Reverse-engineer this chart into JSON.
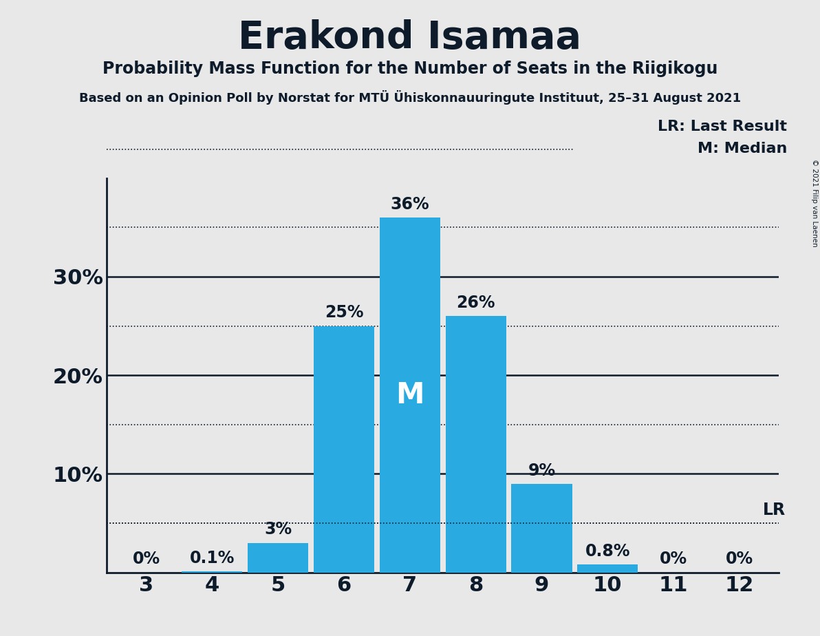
{
  "title": "Erakond Isamaa",
  "subtitle": "Probability Mass Function for the Number of Seats in the Riigikogu",
  "source_text": "Based on an Opinion Poll by Norstat for MTÜ Ühiskonnauuringute Instituut, 25–31 August 2021",
  "copyright_text": "© 2021 Filip van Laenen",
  "categories": [
    3,
    4,
    5,
    6,
    7,
    8,
    9,
    10,
    11,
    12
  ],
  "values": [
    0.0,
    0.1,
    3.0,
    25.0,
    36.0,
    26.0,
    9.0,
    0.8,
    0.0,
    0.0
  ],
  "bar_color": "#29ABE2",
  "median_seat": 7,
  "last_result_pct": 5.0,
  "background_color": "#E8E8E8",
  "title_color": "#0d1b2a",
  "text_color": "#0d1b2a",
  "ylim": [
    0,
    40
  ],
  "solid_grid_lines": [
    10,
    20,
    30
  ],
  "dotted_grid_lines": [
    5,
    15,
    25,
    35
  ],
  "lr_line_pct": 5.0,
  "value_labels": [
    "0%",
    "0.1%",
    "3%",
    "25%",
    "36%",
    "26%",
    "9%",
    "0.8%",
    "0%",
    "0%"
  ]
}
